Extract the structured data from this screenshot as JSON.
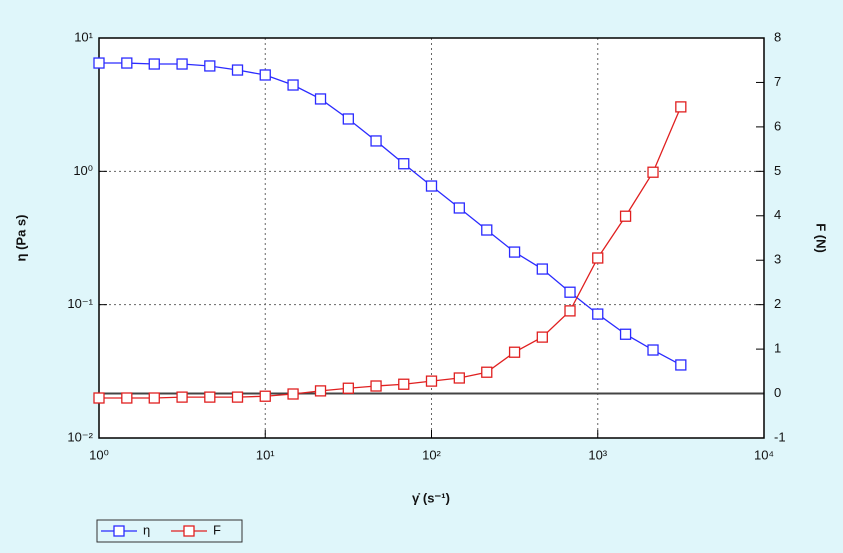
{
  "chart_data": {
    "type": "line",
    "x_label": "γ̇ (s⁻¹)",
    "y_label": "η (Pa s)",
    "y2_label": "F (N)",
    "x_scale": "log",
    "y_scale": "log",
    "y2_scale": "linear",
    "grid": true,
    "legend": "bottom-left",
    "x": [
      1,
      1.47,
      2.15,
      3.16,
      4.64,
      6.81,
      10,
      14.7,
      21.5,
      31.6,
      46.4,
      68.1,
      100,
      147,
      215,
      316,
      464,
      681,
      1000,
      1470,
      2150,
      3160
    ],
    "series": [
      {
        "name": "η",
        "color": "#2b2bff",
        "axis": "y",
        "values": [
          6.49,
          6.49,
          6.38,
          6.38,
          6.17,
          5.75,
          5.28,
          4.44,
          3.49,
          2.47,
          1.69,
          1.14,
          0.776,
          0.531,
          0.363,
          0.248,
          0.185,
          0.124,
          0.085,
          0.06,
          0.0457,
          0.0353
        ]
      },
      {
        "name": "F",
        "color": "#e02020",
        "axis": "y2",
        "values": [
          -0.1,
          -0.1,
          -0.1,
          -0.08,
          -0.08,
          -0.08,
          -0.06,
          -0.01,
          0.06,
          0.12,
          0.17,
          0.21,
          0.28,
          0.35,
          0.48,
          0.93,
          1.27,
          1.86,
          3.05,
          3.99,
          4.98,
          6.45
        ]
      }
    ],
    "xlim": [
      1,
      10000
    ],
    "xticks": [
      {
        "value": 1,
        "label": "10⁰"
      },
      {
        "value": 10,
        "label": "10¹"
      },
      {
        "value": 100,
        "label": "10²"
      },
      {
        "value": 1000,
        "label": "10³"
      },
      {
        "value": 10000,
        "label": "10⁴"
      }
    ],
    "ylim": [
      0.01,
      10
    ],
    "yticks": [
      {
        "value": 0.01,
        "label": "10⁻²"
      },
      {
        "value": 0.1,
        "label": "10⁻¹"
      },
      {
        "value": 1,
        "label": "10⁰"
      },
      {
        "value": 10,
        "label": "10¹"
      }
    ],
    "y2lim": [
      -1,
      8
    ],
    "y2ticks": [
      -1,
      0,
      1,
      2,
      3,
      4,
      5,
      6,
      7,
      8
    ]
  }
}
